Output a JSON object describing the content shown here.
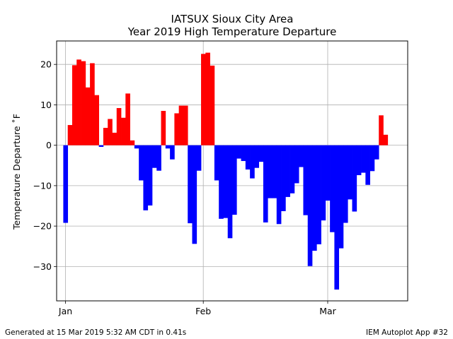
{
  "chart_data": {
    "type": "bar",
    "title": "IATSUX Sioux City Area",
    "subtitle": "Year 2019 High Temperature Departure",
    "xlabel": "",
    "ylabel": "Temperature Departure ˚F",
    "ylim": [
      -38.5,
      25.8
    ],
    "yticks": [
      20,
      10,
      0,
      -10,
      -20,
      -30
    ],
    "ytick_labels": [
      "20",
      "10",
      "0",
      "−10",
      "−20",
      "−30"
    ],
    "xlim": [
      "2018-12-30",
      "2019-03-19"
    ],
    "xticks": [
      {
        "date": "2019-01-01",
        "label": "Jan"
      },
      {
        "date": "2019-02-01",
        "label": "Feb"
      },
      {
        "date": "2019-03-01",
        "label": "Mar"
      }
    ],
    "grid": true,
    "positive_color": "#ff0000",
    "negative_color": "#0000ff",
    "series": [
      {
        "start_date": "2019-01-01",
        "values": [
          -19.2,
          5,
          19.8,
          21.2,
          20.8,
          14.3,
          20.3,
          12.4,
          -0.4,
          4.3,
          6.5,
          3.1,
          9.2,
          6.8,
          12.8,
          1.2,
          -0.8,
          -8.7,
          -16.1,
          -14.9,
          -5.6,
          -6.3,
          8.5,
          -0.8,
          -3.5,
          7.9,
          9.8,
          9.8,
          -19.3,
          -24.4,
          -6.3,
          22.6,
          22.9,
          19.7,
          -8.7,
          -18.2,
          -18,
          -23,
          -17.2,
          -3.3,
          -3.9,
          -6,
          -8.2,
          -5.6,
          -4.1,
          -19.1,
          -13.1,
          -13.1,
          -19.5,
          -16.3,
          -12.8,
          -11.9,
          -9.4,
          -5.4,
          -17.3,
          -29.9,
          -26.1,
          -24.5,
          -18.6,
          -13.7,
          -21.5,
          -35.7,
          -25.5,
          -19.2,
          -13.4,
          -16.4,
          -7.4,
          -6.8,
          -9.8,
          -6.4,
          -3.5,
          7.4,
          2.6
        ]
      }
    ]
  },
  "footer": {
    "left": "Generated at 15 Mar 2019 5:32 AM CDT in 0.41s",
    "right": "IEM Autoplot App #32"
  }
}
